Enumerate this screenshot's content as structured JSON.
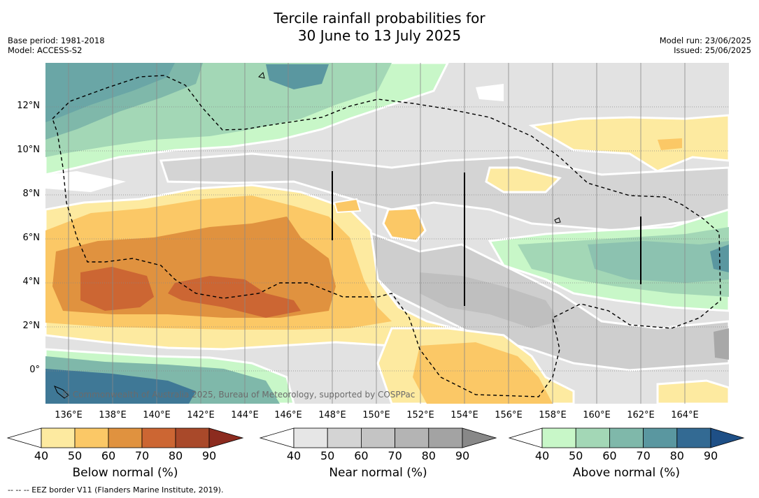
{
  "title": {
    "line1": "Tercile rainfall probabilities for",
    "line2": "30 June to 13 July 2025"
  },
  "meta_left": {
    "base_period": "Base period: 1981-2018",
    "model": "Model: ACCESS-S2"
  },
  "meta_right": {
    "model_run": "Model run: 23/06/2025",
    "issued": "Issued: 25/06/2025"
  },
  "map": {
    "x_ticks": [
      "136°E",
      "138°E",
      "140°E",
      "142°E",
      "144°E",
      "146°E",
      "148°E",
      "150°E",
      "152°E",
      "154°E",
      "156°E",
      "158°E",
      "160°E",
      "162°E",
      "164°E"
    ],
    "y_ticks": [
      "12°N",
      "10°N",
      "8°N",
      "6°N",
      "4°N",
      "2°N",
      "0°"
    ],
    "credit": "© Commonwealth of Australia 2025, Bureau of Meteorology, supported by COSPPac"
  },
  "colorbars": [
    {
      "title": "Below normal (%)",
      "ticks": [
        "40",
        "50",
        "60",
        "70",
        "80",
        "90"
      ],
      "colors": [
        "#fdeaa0",
        "#fbc866",
        "#e0923f",
        "#cc6633",
        "#a9492a",
        "#8c2b1f"
      ]
    },
    {
      "title": "Near normal (%)",
      "ticks": [
        "40",
        "50",
        "60",
        "70",
        "80",
        "90"
      ],
      "colors": [
        "#e6e6e6",
        "#d4d4d4",
        "#c4c4c4",
        "#b4b4b4",
        "#a3a3a3",
        "#888888"
      ]
    },
    {
      "title": "Above normal (%)",
      "ticks": [
        "40",
        "50",
        "60",
        "70",
        "80",
        "90"
      ],
      "colors": [
        "#c8f7c8",
        "#a3d7b6",
        "#7fb8aa",
        "#5a97a0",
        "#336a93",
        "#1e4f86"
      ]
    }
  ],
  "footnote": "--  --  -- EEZ border V11 (Flanders Marine Institute, 2019)."
}
